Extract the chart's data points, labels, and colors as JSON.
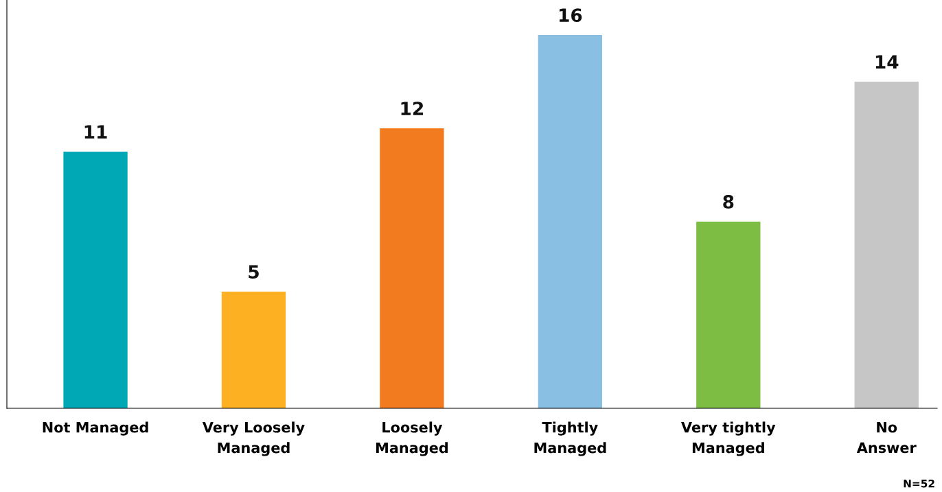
{
  "chart_data": {
    "type": "bar",
    "categories": [
      "Not Managed",
      "Very Loosely\nManaged",
      "Loosely\nManaged",
      "Tightly\nManaged",
      "Very tightly\nManaged",
      "No\nAnswer"
    ],
    "values": [
      11,
      5,
      12,
      16,
      8,
      14
    ],
    "colors": [
      "#00a8b5",
      "#fdb022",
      "#f27b20",
      "#89bfe3",
      "#7dbd43",
      "#c6c6c6"
    ],
    "tick_labels": "x",
    "data_labels": true,
    "grid": false,
    "annotations": [
      "N=52"
    ]
  }
}
